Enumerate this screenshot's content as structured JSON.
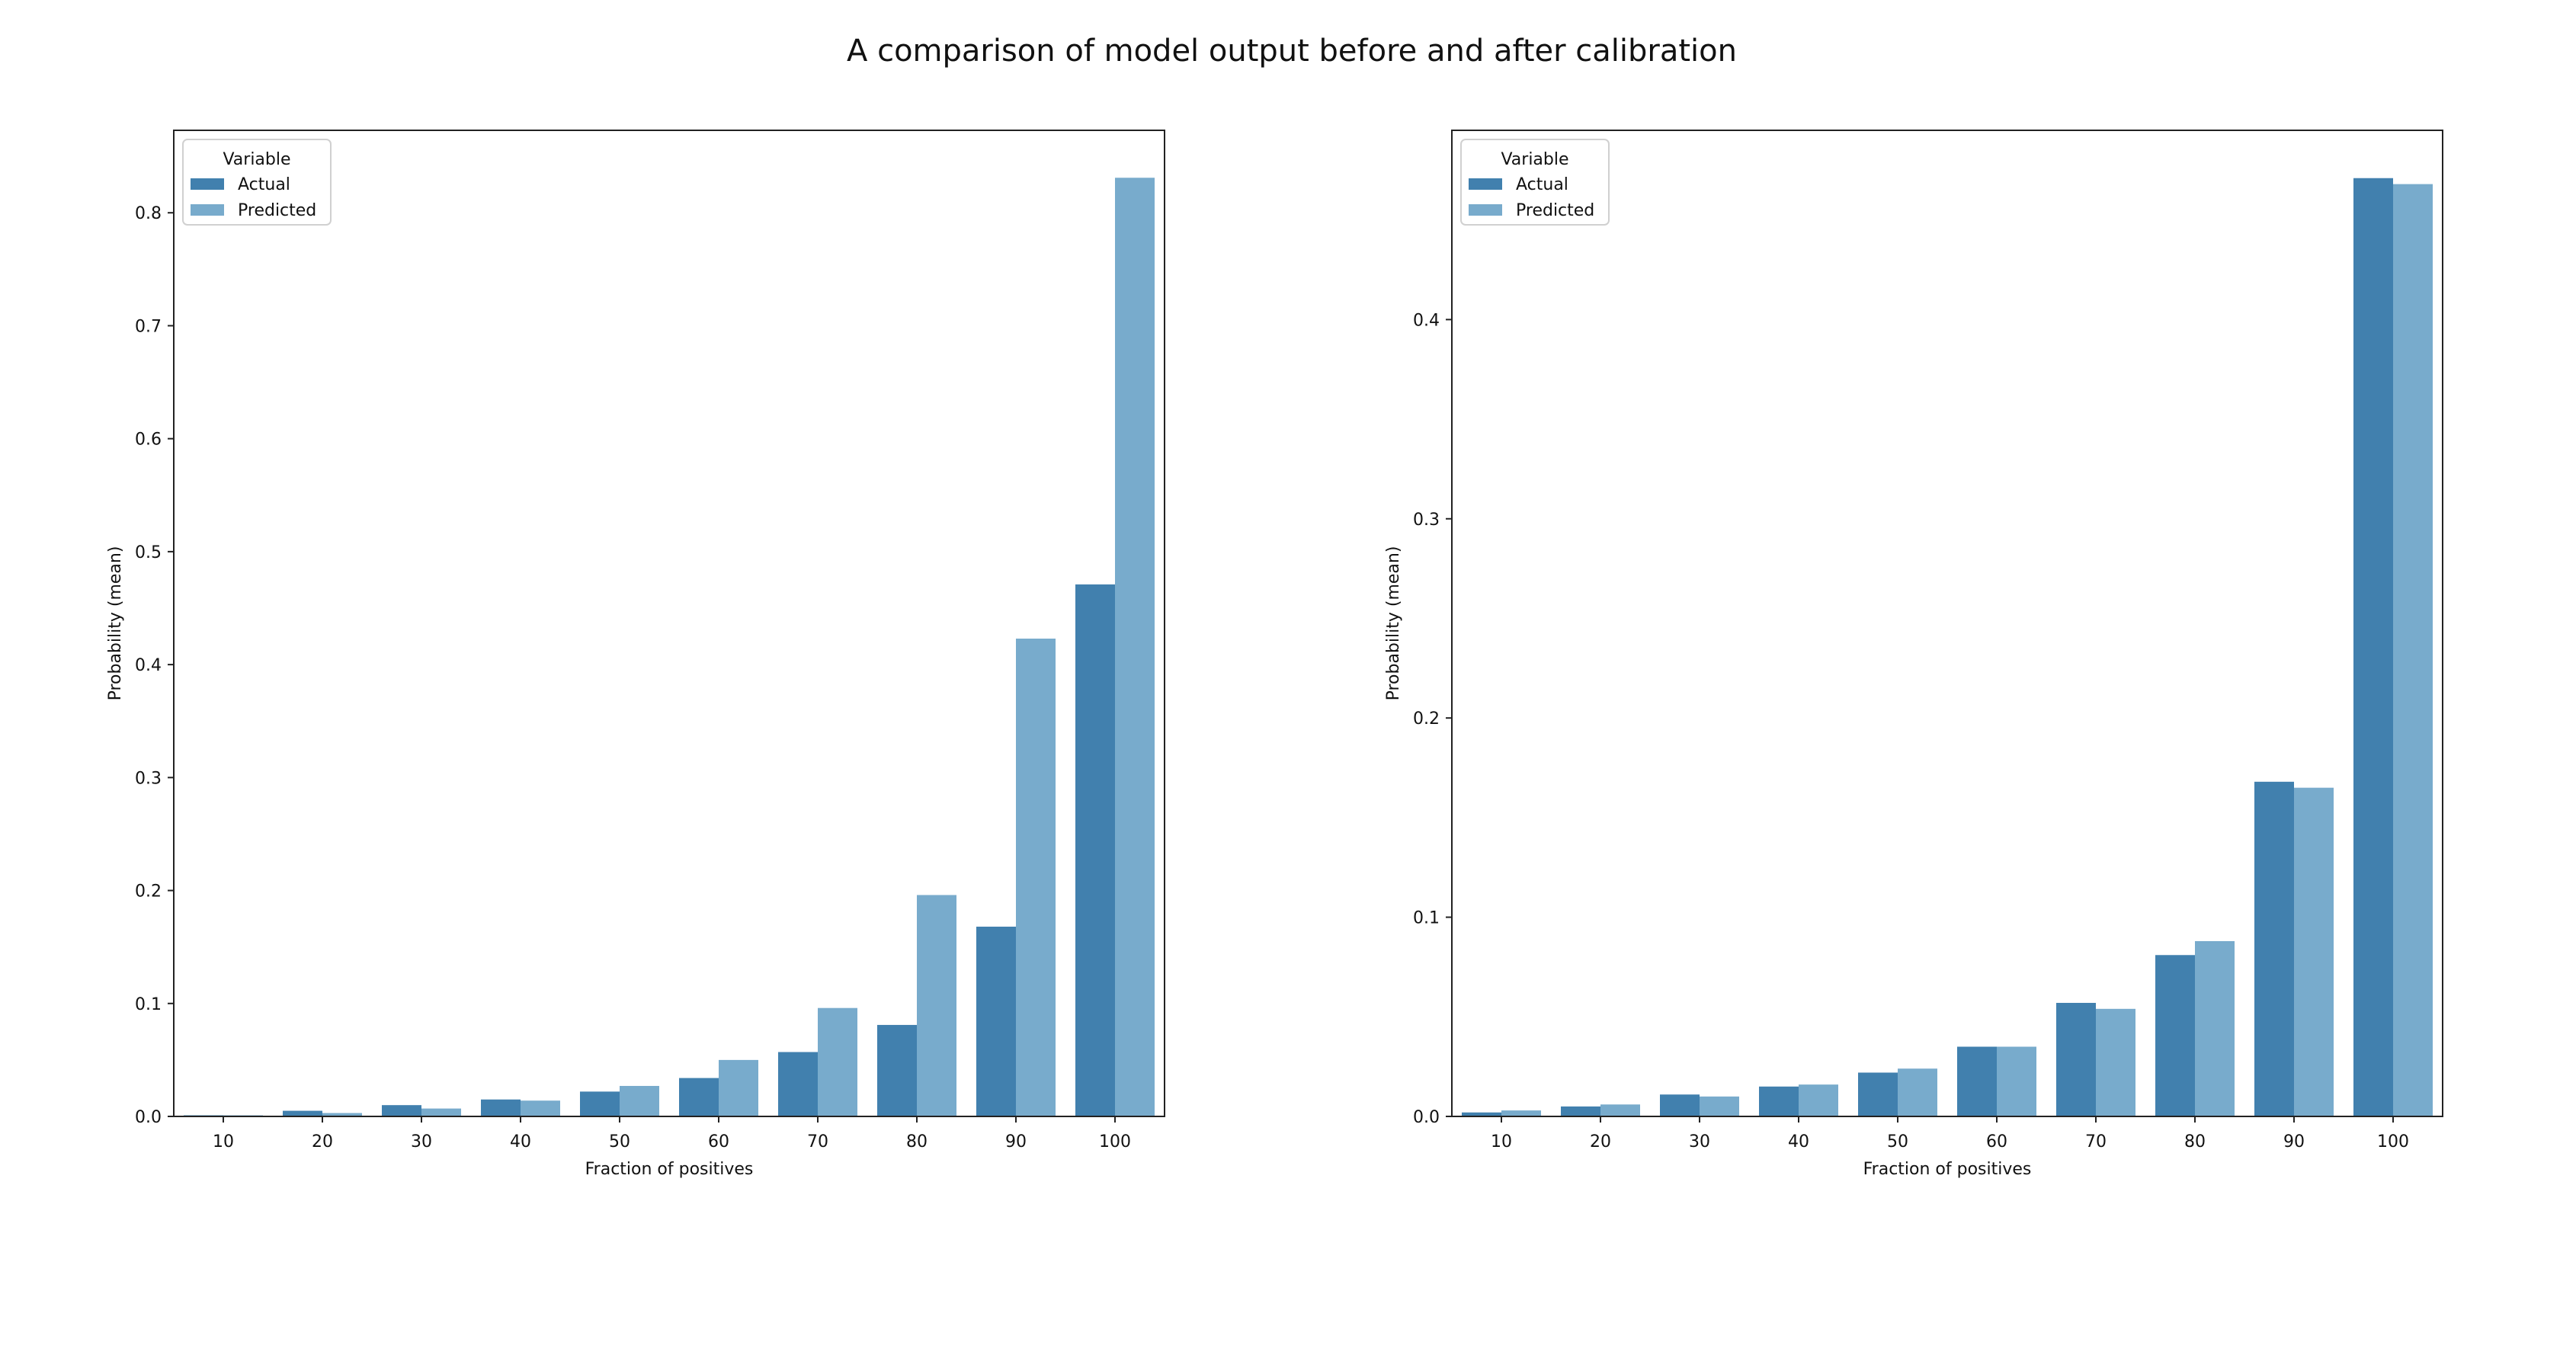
{
  "title": "A comparison of model output before and after calibration",
  "colors": {
    "Actual": "#4180ae",
    "Predicted": "#78abcc"
  },
  "chart_data": [
    {
      "type": "bar",
      "title": "",
      "xlabel": "Fraction of positives",
      "ylabel": "Probability (mean)",
      "categories": [
        "10",
        "20",
        "30",
        "40",
        "50",
        "60",
        "70",
        "80",
        "90",
        "100"
      ],
      "legend": {
        "title": "Variable",
        "placement": "top-left",
        "entries": [
          "Actual",
          "Predicted"
        ]
      },
      "ylim": [
        0,
        0.873
      ],
      "yticks": [
        0.0,
        0.1,
        0.2,
        0.3,
        0.4,
        0.5,
        0.6,
        0.7,
        0.8
      ],
      "ytick_labels": [
        "0.0",
        "0.1",
        "0.2",
        "0.3",
        "0.4",
        "0.5",
        "0.6",
        "0.7",
        "0.8"
      ],
      "series": [
        {
          "name": "Actual",
          "values": [
            0.001,
            0.005,
            0.01,
            0.015,
            0.022,
            0.034,
            0.057,
            0.081,
            0.168,
            0.471
          ]
        },
        {
          "name": "Predicted",
          "values": [
            0.001,
            0.003,
            0.007,
            0.014,
            0.027,
            0.05,
            0.096,
            0.196,
            0.423,
            0.831
          ]
        }
      ]
    },
    {
      "type": "bar",
      "title": "",
      "xlabel": "Fraction of positives",
      "ylabel": "Probability (mean)",
      "categories": [
        "10",
        "20",
        "30",
        "40",
        "50",
        "60",
        "70",
        "80",
        "90",
        "100"
      ],
      "legend": {
        "title": "Variable",
        "placement": "top-left",
        "entries": [
          "Actual",
          "Predicted"
        ]
      },
      "ylim": [
        0,
        0.495
      ],
      "yticks": [
        0.0,
        0.1,
        0.2,
        0.3,
        0.4
      ],
      "ytick_labels": [
        "0.0",
        "0.1",
        "0.2",
        "0.3",
        "0.4"
      ],
      "series": [
        {
          "name": "Actual",
          "values": [
            0.002,
            0.005,
            0.011,
            0.015,
            0.022,
            0.035,
            0.057,
            0.081,
            0.168,
            0.471
          ]
        },
        {
          "name": "Predicted",
          "values": [
            0.003,
            0.006,
            0.01,
            0.016,
            0.024,
            0.035,
            0.054,
            0.088,
            0.165,
            0.468
          ]
        }
      ]
    }
  ]
}
